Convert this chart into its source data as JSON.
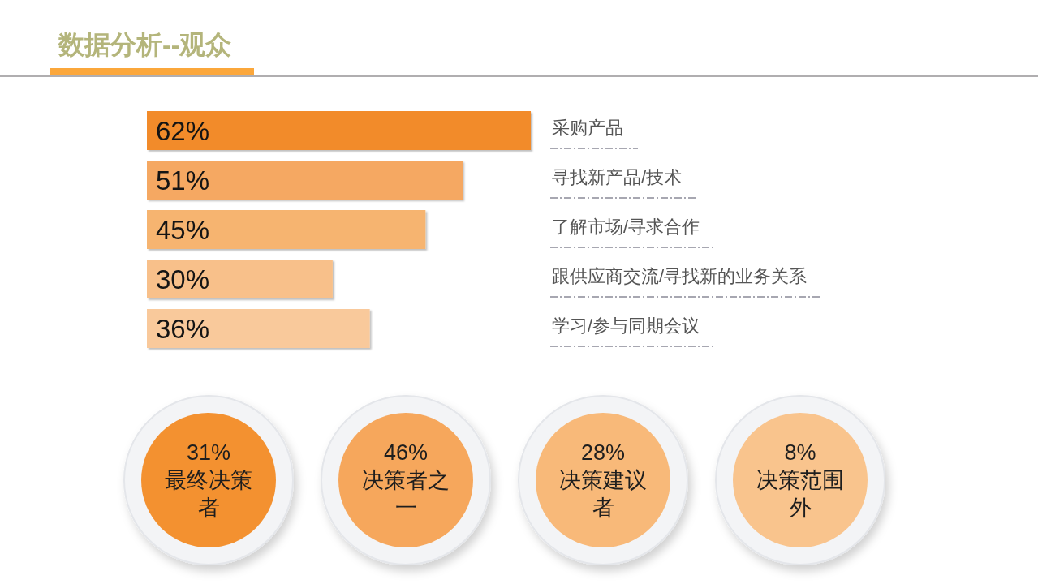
{
  "chart_data": [
    {
      "type": "bar",
      "orientation": "horizontal",
      "title": "数据分析--观众",
      "categories": [
        "采购产品",
        "寻找新产品/技术",
        "了解市场/寻求合作",
        "跟供应商交流/寻找新的业务关系",
        "学习/参与同期会议"
      ],
      "values": [
        62,
        51,
        45,
        30,
        36
      ],
      "value_labels": [
        "62%",
        "51%",
        "45%",
        "30%",
        "36%"
      ],
      "colors": [
        "#f28b2c",
        "#f5a862",
        "#f6b46f",
        "#f8c08a",
        "#f9c99b"
      ]
    },
    {
      "type": "other",
      "categories": [
        "最终决策者",
        "决策者之一",
        "决策建议者",
        "决策范围外"
      ],
      "values": [
        31,
        46,
        28,
        8
      ],
      "value_labels": [
        "31%",
        "46%",
        "28%",
        "8%"
      ],
      "colors": [
        "#f39130",
        "#f6a75c",
        "#f8b979",
        "#f9c48d"
      ]
    }
  ]
}
